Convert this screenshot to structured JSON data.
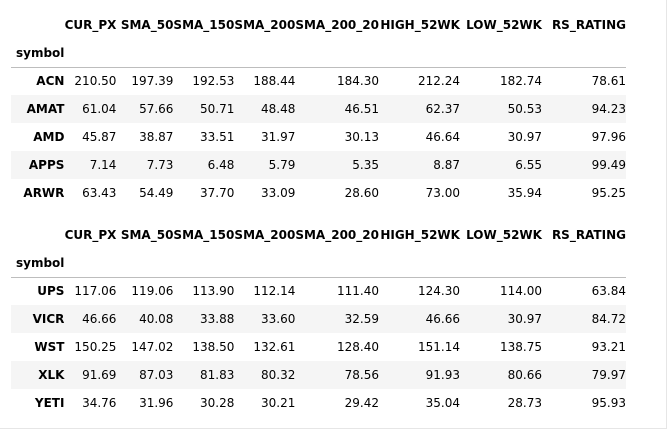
{
  "columns": [
    "CUR_PX",
    "SMA_50",
    "SMA_150",
    "SMA_200",
    "SMA_200_20",
    "HIGH_52WK",
    "LOW_52WK",
    "RS_RATING"
  ],
  "index_name": "symbol",
  "tables": [
    {
      "rows": [
        {
          "symbol": "ACN",
          "values": [
            "210.50",
            "197.39",
            "192.53",
            "188.44",
            "184.30",
            "212.24",
            "182.74",
            "78.61"
          ]
        },
        {
          "symbol": "AMAT",
          "values": [
            "61.04",
            "57.66",
            "50.71",
            "48.48",
            "46.51",
            "62.37",
            "50.53",
            "94.23"
          ]
        },
        {
          "symbol": "AMD",
          "values": [
            "45.87",
            "38.87",
            "33.51",
            "31.97",
            "30.13",
            "46.64",
            "30.97",
            "97.96"
          ]
        },
        {
          "symbol": "APPS",
          "values": [
            "7.14",
            "7.73",
            "6.48",
            "5.79",
            "5.35",
            "8.87",
            "6.55",
            "99.49"
          ]
        },
        {
          "symbol": "ARWR",
          "values": [
            "63.43",
            "54.49",
            "37.70",
            "33.09",
            "28.60",
            "73.00",
            "35.94",
            "95.25"
          ]
        }
      ]
    },
    {
      "rows": [
        {
          "symbol": "UPS",
          "values": [
            "117.06",
            "119.06",
            "113.90",
            "112.14",
            "111.40",
            "124.30",
            "114.00",
            "63.84"
          ]
        },
        {
          "symbol": "VICR",
          "values": [
            "46.66",
            "40.08",
            "33.88",
            "33.60",
            "32.59",
            "46.66",
            "30.97",
            "84.72"
          ]
        },
        {
          "symbol": "WST",
          "values": [
            "150.25",
            "147.02",
            "138.50",
            "132.61",
            "128.40",
            "151.14",
            "138.75",
            "93.21"
          ]
        },
        {
          "symbol": "XLK",
          "values": [
            "91.69",
            "87.03",
            "81.83",
            "80.32",
            "78.56",
            "91.93",
            "80.66",
            "79.97"
          ]
        },
        {
          "symbol": "YETI",
          "values": [
            "34.76",
            "31.96",
            "30.28",
            "30.21",
            "29.42",
            "35.04",
            "28.73",
            "95.93"
          ]
        }
      ]
    }
  ]
}
